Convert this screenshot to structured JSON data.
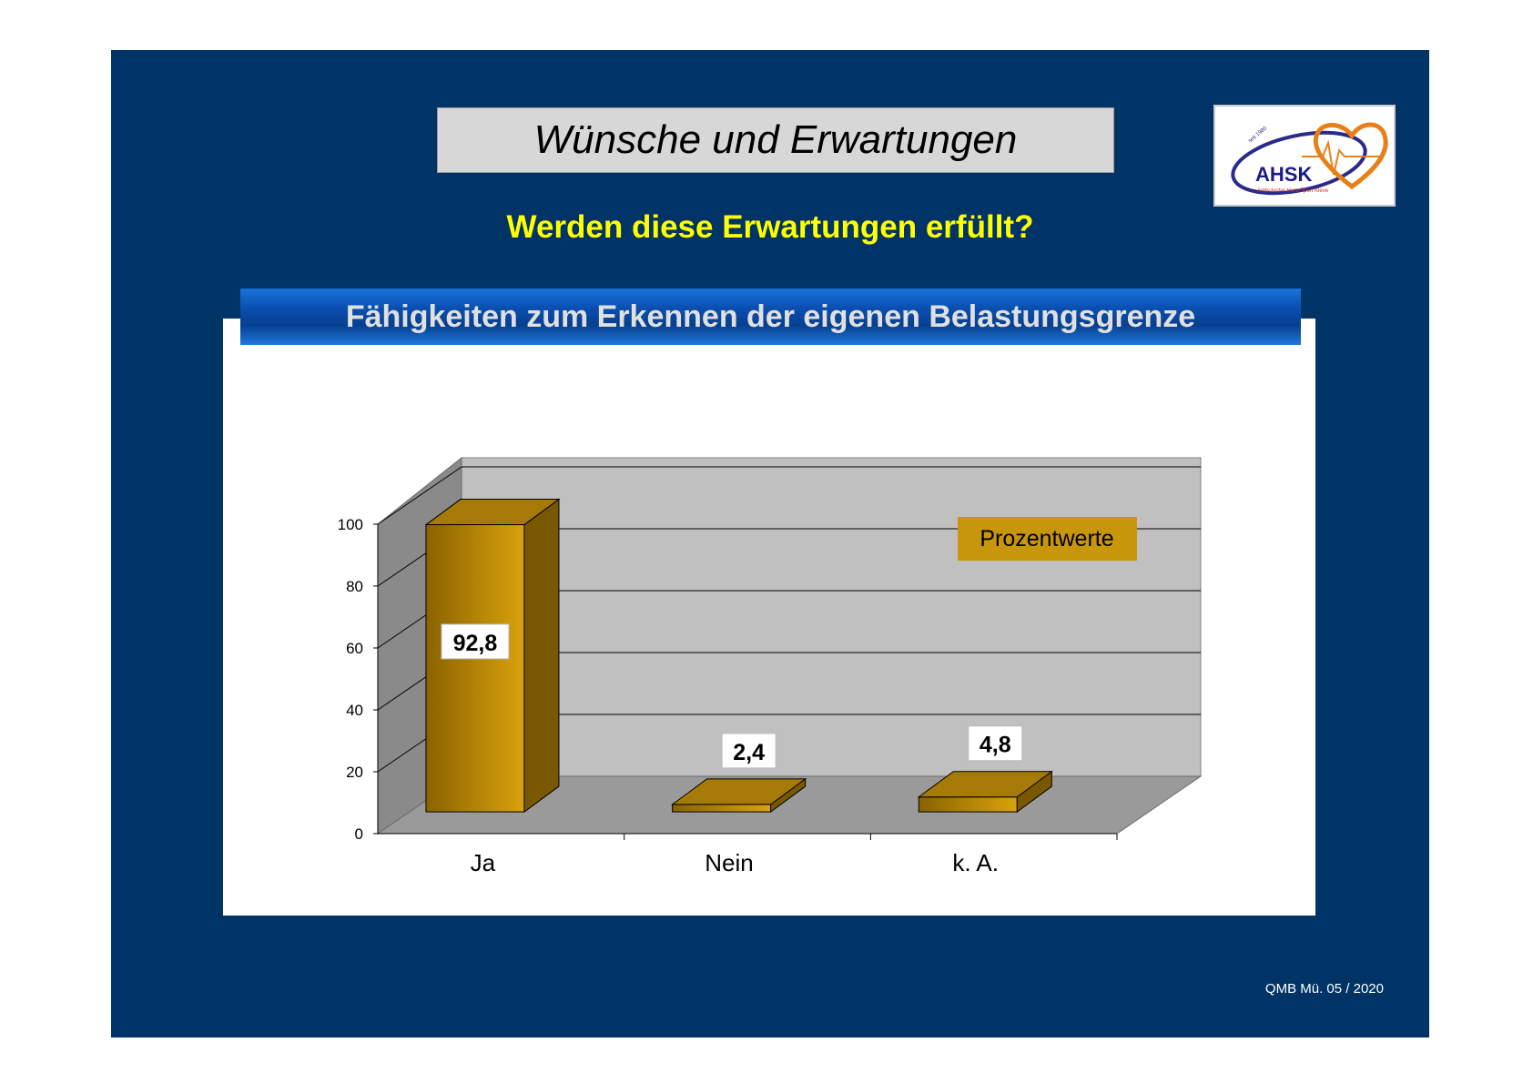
{
  "slide": {
    "title": "Wünsche und Erwartungen",
    "subtitle": "Werden diese Erwartungen erfüllt?",
    "footer": "QMB Mü. 05 / 2020",
    "background_color": "#003366"
  },
  "logo": {
    "text": "AHSK",
    "small_text": "Ambulanter Herz-Sport Kleve",
    "since_text": "seit 1980",
    "icon": "heart-ecg-logo"
  },
  "chart_data": {
    "type": "bar",
    "title": "Fähigkeiten zum Erkennen der eigenen Belastungsgrenze",
    "categories": [
      "Ja",
      "Nein",
      "k. A."
    ],
    "values": [
      92.8,
      2.4,
      4.8
    ],
    "value_labels": [
      "92,8",
      "2,4",
      "4,8"
    ],
    "ylim": [
      0,
      100
    ],
    "yticks": [
      0,
      20,
      40,
      60,
      80,
      100
    ],
    "legend": "Prozentwerte",
    "legend_placement": "top-right",
    "grid": true,
    "style": "3d",
    "bar_color": "#c8960a"
  }
}
